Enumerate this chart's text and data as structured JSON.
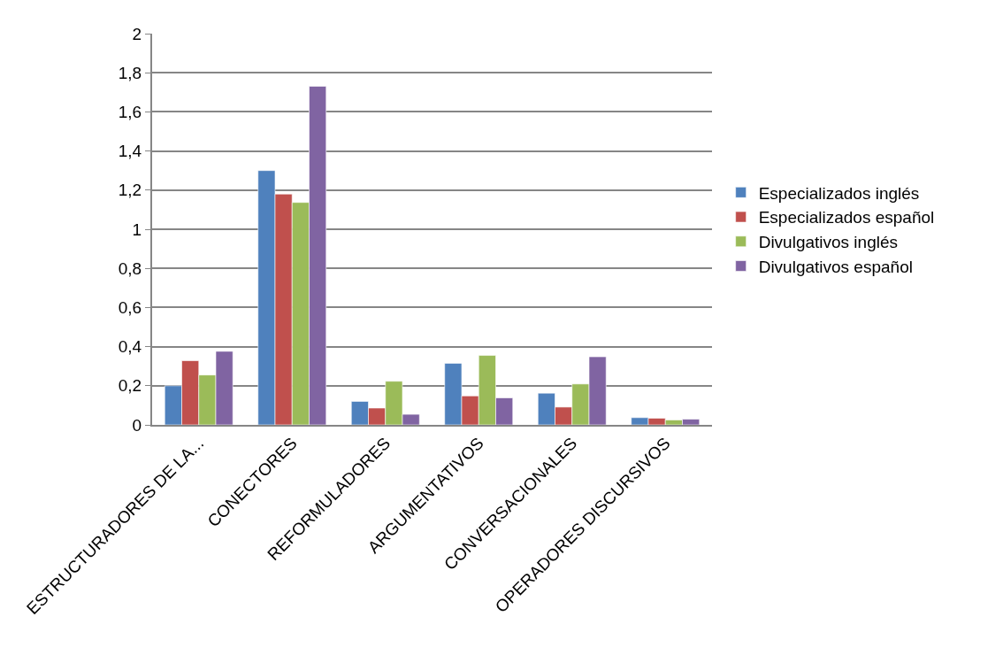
{
  "chart_data": {
    "type": "bar",
    "categories": [
      "ESTRUCTURADORES DE LA...",
      "CONECTORES",
      "REFORMULADORES",
      "ARGUMENTATIVOS",
      "CONVERSACIONALES",
      "OPERADORES DISCURSIVOS"
    ],
    "series": [
      {
        "name": "Especializados inglés",
        "color": "#4f81bd",
        "values": [
          0.2,
          1.3,
          0.12,
          0.315,
          0.162,
          0.037
        ]
      },
      {
        "name": "Especializados español",
        "color": "#c0504d",
        "values": [
          0.328,
          1.18,
          0.086,
          0.148,
          0.091,
          0.034
        ]
      },
      {
        "name": "Divulgativos inglés",
        "color": "#9bbb59",
        "values": [
          0.255,
          1.137,
          0.223,
          0.355,
          0.209,
          0.025
        ]
      },
      {
        "name": "Divulgativos español",
        "color": "#8064a2",
        "values": [
          0.376,
          1.731,
          0.054,
          0.138,
          0.348,
          0.029
        ]
      }
    ],
    "ylim": [
      0,
      2
    ],
    "yticks": [
      {
        "value": 0,
        "label": "0"
      },
      {
        "value": 0.2,
        "label": "0,2"
      },
      {
        "value": 0.4,
        "label": "0,4"
      },
      {
        "value": 0.6,
        "label": "0,6"
      },
      {
        "value": 0.8,
        "label": "0,8"
      },
      {
        "value": 1,
        "label": "1"
      },
      {
        "value": 1.2,
        "label": "1,2"
      },
      {
        "value": 1.4,
        "label": "1,4"
      },
      {
        "value": 1.6,
        "label": "1,6"
      },
      {
        "value": 1.8,
        "label": "1,8"
      },
      {
        "value": 2,
        "label": "2"
      }
    ],
    "grid": "y",
    "legend": "right"
  }
}
